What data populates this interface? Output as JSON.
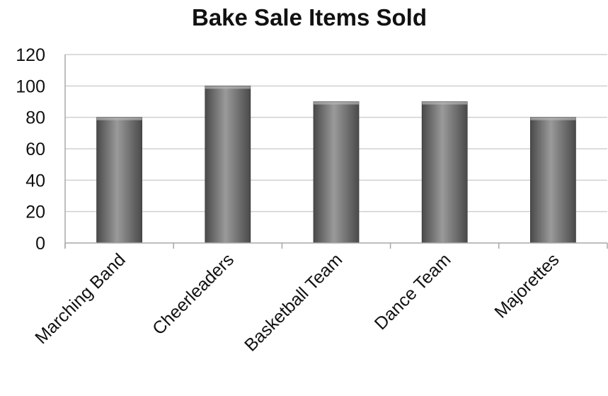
{
  "chart_data": {
    "type": "bar",
    "title": "Bake Sale Items Sold",
    "categories": [
      "Marching Band",
      "Cheerleaders",
      "Basketball Team",
      "Dance Team",
      "Majorettes"
    ],
    "values": [
      80,
      100,
      90,
      90,
      80
    ],
    "xlabel": "",
    "ylabel": "",
    "ylim": [
      0,
      120
    ],
    "yticks": [
      0,
      20,
      40,
      60,
      80,
      100,
      120
    ],
    "grid": true,
    "legend": "none",
    "colors": {
      "bar_light": "#9a9a9a",
      "bar_mid": "#6c6c6c",
      "bar_dark": "#4a4a4a",
      "grid": "#d0d0d0",
      "axis": "#a8a8a8",
      "text": "#111111"
    }
  }
}
